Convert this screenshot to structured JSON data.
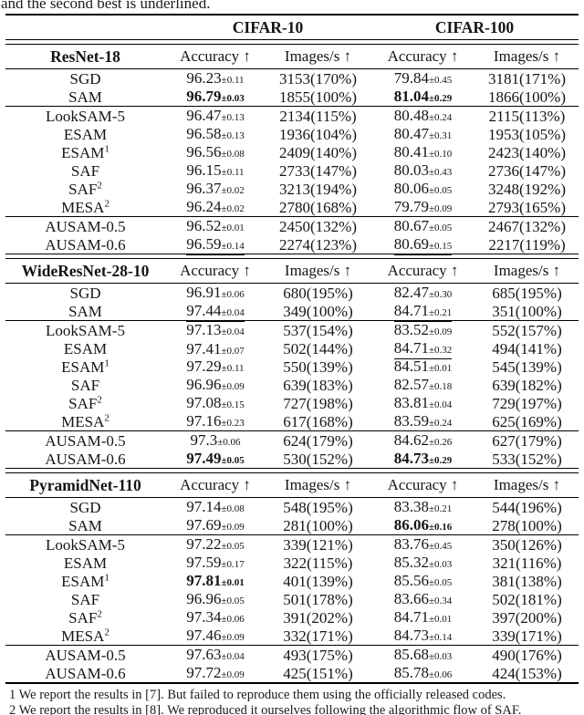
{
  "caption": "and the second best is underlined.",
  "datasets": [
    "CIFAR-10",
    "CIFAR-100"
  ],
  "column_headers": [
    "Accuracy ↑",
    "Images/s ↑",
    "Accuracy ↑",
    "Images/s ↑"
  ],
  "sections": [
    {
      "model": "ResNet-18",
      "groups": [
        [
          {
            "method": "SGD",
            "sup": "",
            "acc10": "96.23",
            "pm10": "±0.11",
            "s10": "n",
            "img10": "3153(170%)",
            "acc100": "79.84",
            "pm100": "±0.45",
            "s100": "n",
            "img100": "3181(171%)"
          },
          {
            "method": "SAM",
            "sup": "",
            "acc10": "96.79",
            "pm10": "±0.03",
            "s10": "b",
            "img10": "1855(100%)",
            "acc100": "81.04",
            "pm100": "±0.29",
            "s100": "b",
            "img100": "1866(100%)"
          }
        ],
        [
          {
            "method": "LookSAM-5",
            "sup": "",
            "acc10": "96.47",
            "pm10": "±0.13",
            "s10": "n",
            "img10": "2134(115%)",
            "acc100": "80.48",
            "pm100": "±0.24",
            "s100": "n",
            "img100": "2115(113%)"
          },
          {
            "method": "ESAM",
            "sup": "",
            "acc10": "96.58",
            "pm10": "±0.13",
            "s10": "n",
            "img10": "1936(104%)",
            "acc100": "80.47",
            "pm100": "±0.31",
            "s100": "n",
            "img100": "1953(105%)"
          },
          {
            "method": "ESAM",
            "sup": "1",
            "acc10": "96.56",
            "pm10": "±0.08",
            "s10": "n",
            "img10": "2409(140%)",
            "acc100": "80.41",
            "pm100": "±0.10",
            "s100": "n",
            "img100": "2423(140%)"
          },
          {
            "method": "SAF",
            "sup": "",
            "acc10": "96.15",
            "pm10": "±0.11",
            "s10": "n",
            "img10": "2733(147%)",
            "acc100": "80.03",
            "pm100": "±0.43",
            "s100": "n",
            "img100": "2736(147%)"
          },
          {
            "method": "SAF",
            "sup": "2",
            "acc10": "96.37",
            "pm10": "±0.02",
            "s10": "n",
            "img10": "3213(194%)",
            "acc100": "80.06",
            "pm100": "±0.05",
            "s100": "n",
            "img100": "3248(192%)"
          },
          {
            "method": "MESA",
            "sup": "2",
            "acc10": "96.24",
            "pm10": "±0.02",
            "s10": "n",
            "img10": "2780(168%)",
            "acc100": "79.79",
            "pm100": "±0.09",
            "s100": "n",
            "img100": "2793(165%)"
          }
        ],
        [
          {
            "method": "AUSAM-0.5",
            "sup": "",
            "acc10": "96.52",
            "pm10": "±0.01",
            "s10": "n",
            "img10": "2450(132%)",
            "acc100": "80.67",
            "pm100": "±0.05",
            "s100": "n",
            "img100": "2467(132%)"
          },
          {
            "method": "AUSAM-0.6",
            "sup": "",
            "acc10": "96.59",
            "pm10": "±0.14",
            "s10": "u",
            "img10": "2274(123%)",
            "acc100": "80.69",
            "pm100": "±0.15",
            "s100": "u",
            "img100": "2217(119%)"
          }
        ]
      ]
    },
    {
      "model": "WideResNet-28-10",
      "groups": [
        [
          {
            "method": "SGD",
            "sup": "",
            "acc10": "96.91",
            "pm10": "±0.06",
            "s10": "n",
            "img10": "680(195%)",
            "acc100": "82.47",
            "pm100": "±0.30",
            "s100": "n",
            "img100": "685(195%)"
          },
          {
            "method": "SAM",
            "sup": "",
            "acc10": "97.44",
            "pm10": "±0.04",
            "s10": "u",
            "img10": "349(100%)",
            "acc100": "84.71",
            "pm100": "±0.21",
            "s100": "u",
            "img100": "351(100%)"
          }
        ],
        [
          {
            "method": "LookSAM-5",
            "sup": "",
            "acc10": "97.13",
            "pm10": "±0.04",
            "s10": "n",
            "img10": "537(154%)",
            "acc100": "83.52",
            "pm100": "±0.09",
            "s100": "n",
            "img100": "552(157%)"
          },
          {
            "method": "ESAM",
            "sup": "",
            "acc10": "97.41",
            "pm10": "±0.07",
            "s10": "n",
            "img10": "502(144%)",
            "acc100": "84.71",
            "pm100": "±0.32",
            "s100": "u",
            "img100": "494(141%)"
          },
          {
            "method": "ESAM",
            "sup": "1",
            "acc10": "97.29",
            "pm10": "±0.11",
            "s10": "n",
            "img10": "550(139%)",
            "acc100": "84.51",
            "pm100": "±0.01",
            "s100": "n",
            "img100": "545(139%)"
          },
          {
            "method": "SAF",
            "sup": "",
            "acc10": "96.96",
            "pm10": "±0.09",
            "s10": "n",
            "img10": "639(183%)",
            "acc100": "82.57",
            "pm100": "±0.18",
            "s100": "n",
            "img100": "639(182%)"
          },
          {
            "method": "SAF",
            "sup": "2",
            "acc10": "97.08",
            "pm10": "±0.15",
            "s10": "n",
            "img10": "727(198%)",
            "acc100": "83.81",
            "pm100": "±0.04",
            "s100": "n",
            "img100": "729(197%)"
          },
          {
            "method": "MESA",
            "sup": "2",
            "acc10": "97.16",
            "pm10": "±0.23",
            "s10": "n",
            "img10": "617(168%)",
            "acc100": "83.59",
            "pm100": "±0.24",
            "s100": "n",
            "img100": "625(169%)"
          }
        ],
        [
          {
            "method": "AUSAM-0.5",
            "sup": "",
            "acc10": "97.3",
            "pm10": "±0.06",
            "s10": "n",
            "img10": "624(179%)",
            "acc100": "84.62",
            "pm100": "±0.26",
            "s100": "n",
            "img100": "627(179%)"
          },
          {
            "method": "AUSAM-0.6",
            "sup": "",
            "acc10": "97.49",
            "pm10": "±0.05",
            "s10": "b",
            "img10": "530(152%)",
            "acc100": "84.73",
            "pm100": "±0.29",
            "s100": "b",
            "img100": "533(152%)"
          }
        ]
      ]
    },
    {
      "model": "PyramidNet-110",
      "groups": [
        [
          {
            "method": "SGD",
            "sup": "",
            "acc10": "97.14",
            "pm10": "±0.08",
            "s10": "n",
            "img10": "548(195%)",
            "acc100": "83.38",
            "pm100": "±0.21",
            "s100": "n",
            "img100": "544(196%)"
          },
          {
            "method": "SAM",
            "sup": "",
            "acc10": "97.69",
            "pm10": "±0.09",
            "s10": "n",
            "img10": "281(100%)",
            "acc100": "86.06",
            "pm100": "±0.16",
            "s100": "b",
            "img100": "278(100%)"
          }
        ],
        [
          {
            "method": "LookSAM-5",
            "sup": "",
            "acc10": "97.22",
            "pm10": "±0.05",
            "s10": "n",
            "img10": "339(121%)",
            "acc100": "83.76",
            "pm100": "±0.45",
            "s100": "n",
            "img100": "350(126%)"
          },
          {
            "method": "ESAM",
            "sup": "",
            "acc10": "97.59",
            "pm10": "±0.17",
            "s10": "n",
            "img10": "322(115%)",
            "acc100": "85.32",
            "pm100": "±0.03",
            "s100": "n",
            "img100": "321(116%)"
          },
          {
            "method": "ESAM",
            "sup": "1",
            "acc10": "97.81",
            "pm10": "±0.01",
            "s10": "b",
            "img10": "401(139%)",
            "acc100": "85.56",
            "pm100": "±0.05",
            "s100": "n",
            "img100": "381(138%)"
          },
          {
            "method": "SAF",
            "sup": "",
            "acc10": "96.96",
            "pm10": "±0.05",
            "s10": "n",
            "img10": "501(178%)",
            "acc100": "83.66",
            "pm100": "±0.34",
            "s100": "n",
            "img100": "502(181%)"
          },
          {
            "method": "SAF",
            "sup": "2",
            "acc10": "97.34",
            "pm10": "±0.06",
            "s10": "n",
            "img10": "391(202%)",
            "acc100": "84.71",
            "pm100": "±0.01",
            "s100": "n",
            "img100": "397(200%)"
          },
          {
            "method": "MESA",
            "sup": "2",
            "acc10": "97.46",
            "pm10": "±0.09",
            "s10": "n",
            "img10": "332(171%)",
            "acc100": "84.73",
            "pm100": "±0.14",
            "s100": "n",
            "img100": "339(171%)"
          }
        ],
        [
          {
            "method": "AUSAM-0.5",
            "sup": "",
            "acc10": "97.63",
            "pm10": "±0.04",
            "s10": "n",
            "img10": "493(175%)",
            "acc100": "85.68",
            "pm100": "±0.03",
            "s100": "n",
            "img100": "490(176%)"
          },
          {
            "method": "AUSAM-0.6",
            "sup": "",
            "acc10": "97.72",
            "pm10": "±0.09",
            "s10": "u",
            "img10": "425(151%)",
            "acc100": "85.78",
            "pm100": "±0.06",
            "s100": "u",
            "img100": "424(153%)"
          }
        ]
      ]
    }
  ],
  "footnotes": [
    "1 We report the results in [7]. But failed to reproduce them using the officially released codes.",
    "2 We report the results in [8]. We reproduced it ourselves following the algorithmic flow of SAF."
  ]
}
